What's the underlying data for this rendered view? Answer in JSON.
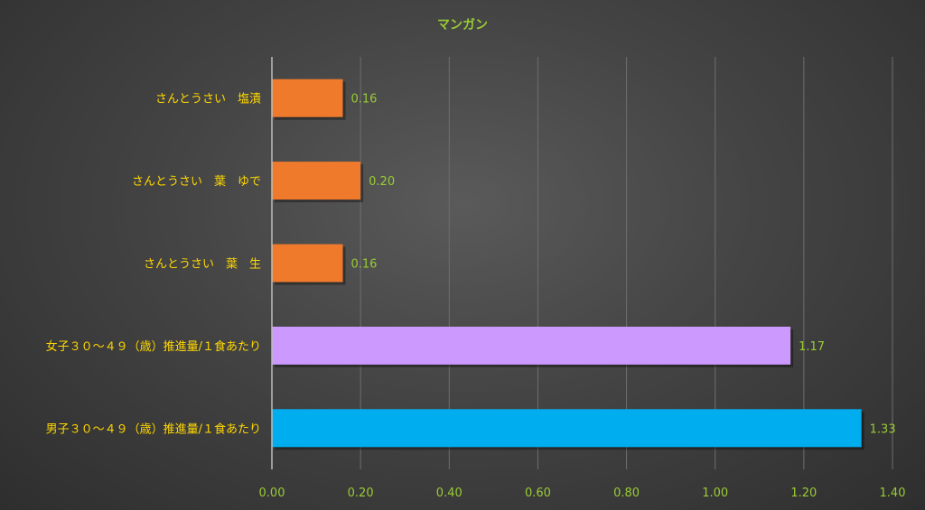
{
  "chart_data": {
    "type": "bar",
    "orientation": "horizontal",
    "title": "マンガン",
    "categories": [
      "さんとうさい　塩漬",
      "さんとうさい　葉　ゆで",
      "さんとうさい　葉　生",
      "女子３０～４９（歳）推進量/１食あたり",
      "男子３０～４９（歳）推進量/１食あたり"
    ],
    "values": [
      0.16,
      0.2,
      0.16,
      1.17,
      1.33
    ],
    "value_labels": [
      "0.16",
      "0.20",
      "0.16",
      "1.17",
      "1.33"
    ],
    "bar_colors": [
      "#f07a2c",
      "#f07a2c",
      "#f07a2c",
      "#cc99ff",
      "#00aeef"
    ],
    "xlim": [
      0,
      1.4
    ],
    "x_ticks": [
      0,
      0.2,
      0.4,
      0.6,
      0.8,
      1.0,
      1.2,
      1.4
    ],
    "x_tick_labels": [
      "0.00",
      "0.20",
      "0.40",
      "0.60",
      "0.80",
      "1.00",
      "1.20",
      "1.40"
    ],
    "grid": "vertical",
    "legend": "none",
    "colors": {
      "title": "#99cc33",
      "category_label": "#ffd700",
      "value_label": "#99cc33",
      "tick_label": "#99cc33",
      "gridline": "#6e6e6e",
      "axis": "#bdbdbd"
    }
  }
}
